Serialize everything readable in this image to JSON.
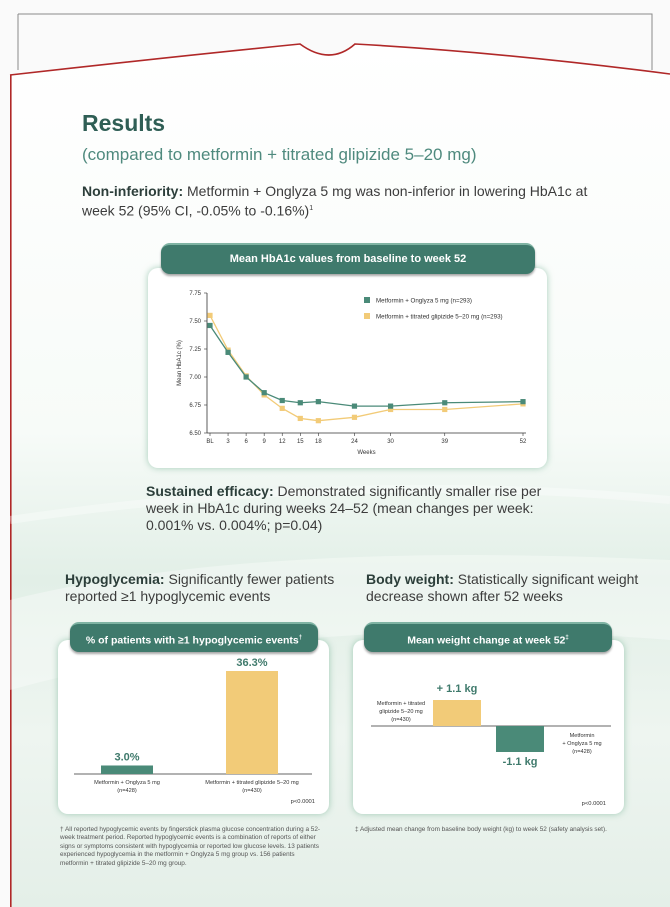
{
  "heading": {
    "title": "Results",
    "subtitle": "(compared to metformin + titrated glipizide 5–20 mg)"
  },
  "noninferiority": {
    "label": "Non-inferiority:",
    "text": " Metformin + Onglyza 5 mg was non-inferior in lowering HbA1c at week 52 (95% CI, -0.05% to -0.16%)",
    "ref": "1"
  },
  "sustained": {
    "label": "Sustained efficacy:",
    "text": " Demonstrated significantly smaller rise per week in HbA1c during weeks 24–52 (mean changes per week: 0.001% vs. 0.004%; p=0.04)"
  },
  "hypoglycemia": {
    "label": "Hypoglycemia:",
    "text": " Significantly fewer patients reported ≥1 hypoglycemic events"
  },
  "bodyweight": {
    "label": "Body weight:",
    "text": " Statistically significant weight decrease shown after 52 weeks"
  },
  "colors": {
    "green": "#4a8a78",
    "yellow": "#f2cb78",
    "header": "#3f7a6c"
  },
  "chart_data": [
    {
      "type": "line",
      "title": "Mean HbA1c values from baseline to week 52",
      "xlabel": "Weeks",
      "ylabel": "Mean HbA1c (%)",
      "x": [
        "BL",
        "3",
        "6",
        "9",
        "12",
        "15",
        "18",
        "24",
        "30",
        "39",
        "52"
      ],
      "x_values": [
        0,
        3,
        6,
        9,
        12,
        15,
        18,
        24,
        30,
        39,
        52
      ],
      "ylim": [
        6.5,
        7.75
      ],
      "yticks": [
        "7.75",
        "7.50",
        "7.25",
        "7.00",
        "6.75",
        "6.50"
      ],
      "ytick_values": [
        7.75,
        7.5,
        7.25,
        7.0,
        6.75,
        6.5
      ],
      "legend_position": "top-right",
      "series": [
        {
          "name": "Metformin + Onglyza 5 mg (n=293)",
          "color": "#4a8a78",
          "values": [
            7.46,
            7.22,
            7.0,
            6.86,
            6.79,
            6.77,
            6.78,
            6.74,
            6.74,
            6.77,
            6.78
          ]
        },
        {
          "name": "Metformin + titrated glipizide 5–20 mg (n=293)",
          "color": "#f2cb78",
          "values": [
            7.55,
            7.24,
            7.01,
            6.84,
            6.72,
            6.63,
            6.61,
            6.64,
            6.71,
            6.71,
            6.76
          ]
        }
      ]
    },
    {
      "type": "bar",
      "title": "% of patients with ≥1 hypoglycemic events",
      "title_mark": "†",
      "categories": [
        "Metformin + Onglyza 5 mg",
        "Metformin + titrated glipizide 5–20 mg"
      ],
      "category_n": [
        "(n=428)",
        "(n=430)"
      ],
      "values": [
        3.0,
        36.3
      ],
      "data_labels": [
        "3.0%",
        "36.3%"
      ],
      "colors": [
        "#4a8a78",
        "#f2cb78"
      ],
      "ylim": [
        0,
        36.3
      ],
      "annotation": "p<0.0001"
    },
    {
      "type": "bar",
      "title": "Mean weight change at week 52",
      "title_mark": "‡",
      "categories": [
        "Metformin + titrated glipizide 5–20 mg (n=430)",
        "Metformin + Onglyza 5 mg (n=428)"
      ],
      "label_lines": [
        [
          "Metformin + titrated",
          "glipizide 5–20 mg",
          "(n=430)"
        ],
        [
          "Metformin",
          "+ Onglyza 5 mg",
          "(n=428)"
        ]
      ],
      "values": [
        1.1,
        -1.1
      ],
      "data_labels": [
        "+ 1.1 kg",
        "-1.1 kg"
      ],
      "colors": [
        "#f2cb78",
        "#4a8a78"
      ],
      "annotation": "p<0.0001"
    }
  ],
  "footnotes": {
    "hypo": "† All reported hypoglycemic events by fingerstick plasma glucose concentration during a 52-week treatment period. Reported hypoglycemic events is a combination of reports of either signs or symptoms consistent with hypoglycemia or reported low glucose levels. 13 patients experienced hypoglycemia in the metformin + Onglyza 5 mg group vs. 156 patients metformin + titrated glipizide 5–20 mg group.",
    "weight": "‡ Adjusted mean change from baseline body weight (kg) to week 52 (safety analysis set)."
  }
}
